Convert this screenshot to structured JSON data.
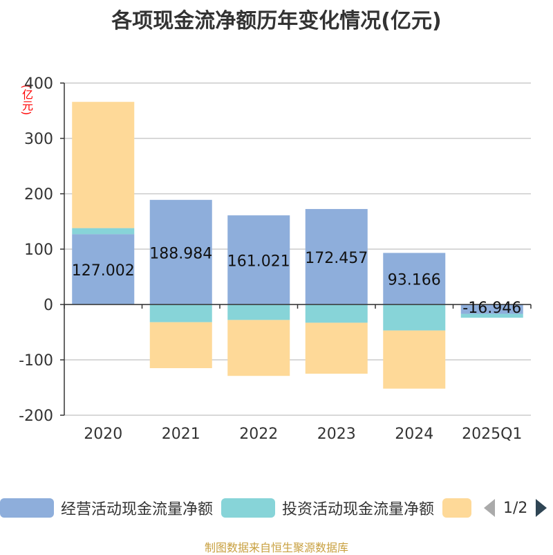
{
  "title": "各项现金流净额历年变化情况(亿元)",
  "source": "制图数据来自恒生聚源数据库",
  "chart_data": {
    "type": "bar",
    "stacked": true,
    "unit_label": "(亿元)",
    "categories": [
      "2020",
      "2021",
      "2022",
      "2023",
      "2024",
      "2025Q1"
    ],
    "ylim": [
      -200,
      400
    ],
    "yticks": [
      -200,
      -100,
      0,
      100,
      200,
      300,
      400
    ],
    "grid": true,
    "series": [
      {
        "name": "经营活动现金流量净额",
        "color": "#8eaedb",
        "values": [
          127.002,
          188.984,
          161.021,
          172.457,
          93.166,
          -16.946
        ],
        "labels": [
          "127.002",
          "188.984",
          "161.021",
          "172.457",
          "93.166",
          "-16.946"
        ]
      },
      {
        "name": "投资活动现金流量净额",
        "color": "#87d4d8",
        "values": [
          11,
          -32,
          -28,
          -33,
          -47,
          -7
        ]
      },
      {
        "name": "",
        "color": "#fed998",
        "values": [
          228,
          -83,
          -101,
          -92,
          -105,
          0
        ]
      }
    ],
    "legend": {
      "position": "bottom",
      "page": "1/2"
    }
  }
}
